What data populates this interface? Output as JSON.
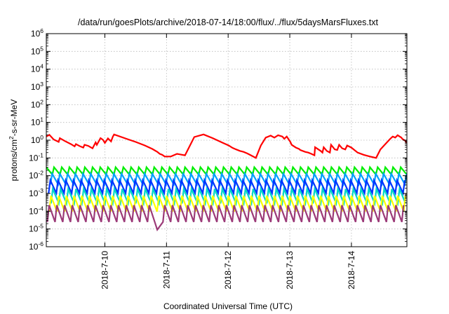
{
  "chart_data": {
    "type": "line",
    "title": "/data/run/goesPlots/archive/2018-07-14/18:00/flux/../flux/5daysMarsFluxes.txt",
    "xlabel": "Coordinated Universal Time (UTC)",
    "ylabel": {
      "pre": "protons/cm",
      "sup": "2",
      "post": "-s-sr-MeV"
    },
    "yscale": "log",
    "ylim_exp": [
      -6,
      6
    ],
    "y_ticks": [
      {
        "base": "10",
        "exp": "-6"
      },
      {
        "base": "10",
        "exp": "-5"
      },
      {
        "base": "10",
        "exp": "-4"
      },
      {
        "base": "10",
        "exp": "-3"
      },
      {
        "base": "10",
        "exp": "-2"
      },
      {
        "base": "10",
        "exp": "-1"
      },
      {
        "base": "10",
        "exp": "0"
      },
      {
        "base": "10",
        "exp": "1"
      },
      {
        "base": "10",
        "exp": "2"
      },
      {
        "base": "10",
        "exp": "3"
      },
      {
        "base": "10",
        "exp": "4"
      },
      {
        "base": "10",
        "exp": "5"
      },
      {
        "base": "10",
        "exp": "6"
      }
    ],
    "xlim_days": [
      0,
      5.85
    ],
    "x_ticks": [
      {
        "label": "2018-7-10",
        "day": 0.95
      },
      {
        "label": "2018-7-11",
        "day": 1.95
      },
      {
        "label": "2018-7-12",
        "day": 2.95
      },
      {
        "label": "2018-7-13",
        "day": 3.95
      },
      {
        "label": "2018-7-14",
        "day": 4.95
      }
    ],
    "grid": true,
    "series": [
      {
        "color": "#ff0000",
        "x": [
          0.0,
          0.05,
          0.12,
          0.2,
          0.22,
          0.3,
          0.4,
          0.46,
          0.48,
          0.55,
          0.6,
          0.62,
          0.68,
          0.75,
          0.8,
          0.82,
          0.88,
          0.92,
          0.95,
          1.0,
          1.05,
          1.08,
          1.1,
          1.3,
          1.45,
          1.6,
          1.72,
          1.8,
          1.84,
          1.88,
          1.92,
          2.02,
          2.12,
          2.25,
          2.4,
          2.55,
          2.7,
          2.85,
          2.96,
          3.02,
          3.08,
          3.14,
          3.2,
          3.26,
          3.32,
          3.4,
          3.48,
          3.56,
          3.64,
          3.7,
          3.76,
          3.83,
          3.86,
          3.9,
          3.96,
          3.98,
          4.05,
          4.1,
          4.12,
          4.2,
          4.25,
          4.3,
          4.35,
          4.36,
          4.45,
          4.48,
          4.5,
          4.55,
          4.6,
          4.62,
          4.68,
          4.72,
          4.75,
          4.8,
          4.85,
          4.88,
          4.95,
          5.05,
          5.15,
          5.25,
          5.35,
          5.42,
          5.5,
          5.58,
          5.62,
          5.66,
          5.7,
          5.76,
          5.78,
          5.82,
          5.85
        ],
        "y": [
          1.6,
          2.0,
          1.1,
          0.8,
          1.3,
          0.9,
          0.6,
          0.45,
          0.6,
          0.45,
          0.38,
          0.55,
          0.48,
          0.35,
          0.75,
          0.55,
          1.3,
          1.05,
          0.7,
          1.25,
          0.85,
          1.6,
          2.1,
          1.2,
          0.8,
          0.5,
          0.32,
          0.22,
          0.17,
          0.15,
          0.12,
          0.12,
          0.17,
          0.14,
          1.5,
          2.1,
          1.3,
          0.75,
          0.5,
          0.37,
          0.3,
          0.25,
          0.22,
          0.18,
          0.14,
          0.1,
          0.5,
          1.4,
          1.8,
          1.4,
          1.9,
          1.6,
          1.2,
          1.6,
          0.8,
          0.55,
          0.38,
          0.32,
          0.28,
          0.22,
          0.2,
          0.17,
          0.14,
          0.4,
          0.25,
          0.2,
          0.4,
          0.25,
          0.2,
          0.55,
          0.3,
          0.28,
          0.55,
          0.35,
          0.3,
          0.5,
          0.38,
          0.2,
          0.15,
          0.12,
          0.1,
          0.3,
          0.6,
          1.2,
          1.6,
          1.4,
          1.9,
          1.4,
          1.15,
          0.95,
          0.7
        ]
      },
      {
        "color": "#00ee00",
        "sawtooth": {
          "top": 0.03,
          "bottom": 0.011,
          "period": 0.125,
          "phase": 0.0
        }
      },
      {
        "color": "#00a0ff",
        "sawtooth": {
          "top": 0.013,
          "bottom": 0.003,
          "period": 0.125,
          "phase": 0.03
        }
      },
      {
        "color": "#0033ff",
        "sawtooth": {
          "top": 0.0055,
          "bottom": 0.00095,
          "period": 0.125,
          "phase": 0.06
        }
      },
      {
        "color": "#00d8c8",
        "sawtooth": {
          "top": 0.0018,
          "bottom": 0.00025,
          "period": 0.125,
          "phase": 0.02
        }
      },
      {
        "color": "#ffff00",
        "sawtooth": {
          "top": 0.00075,
          "bottom": 8.5e-05,
          "period": 0.125,
          "phase": 0.05
        }
      },
      {
        "color": "#9b3a78",
        "sawtooth": {
          "top": 0.00022,
          "bottom": 2.2e-05,
          "period": 0.125,
          "phase": 0.08
        },
        "dip": {
          "day": 1.8,
          "value": 9e-06
        }
      }
    ]
  }
}
